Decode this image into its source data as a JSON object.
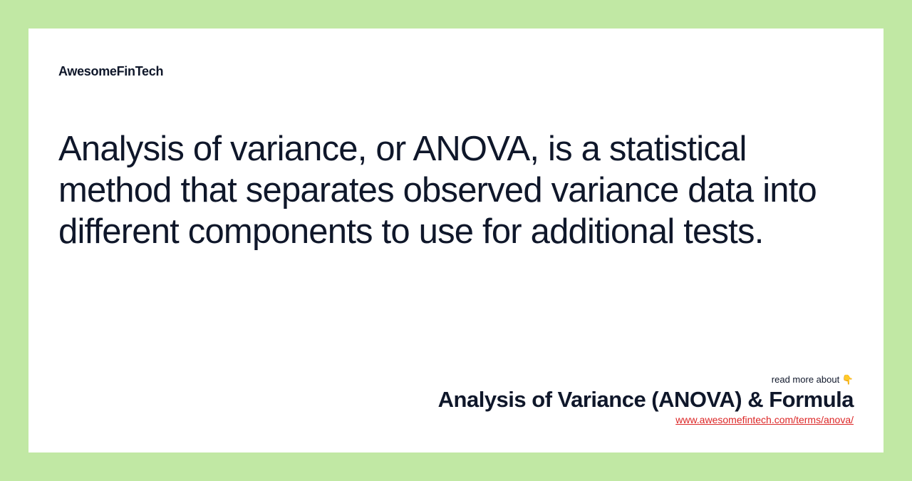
{
  "brand": "AwesomeFinTech",
  "body": "Analysis of variance, or ANOVA, is a statistical method that separates observed variance data into different components to use for additional tests.",
  "footer": {
    "readmore": "read more about 👇",
    "title": "Analysis of Variance (ANOVA) & Formula",
    "url": "www.awesomefintech.com/terms/anova/"
  },
  "colors": {
    "page_bg": "#c1e8a4",
    "card_bg": "#ffffff",
    "text": "#0f172a",
    "link": "#dc2626"
  }
}
